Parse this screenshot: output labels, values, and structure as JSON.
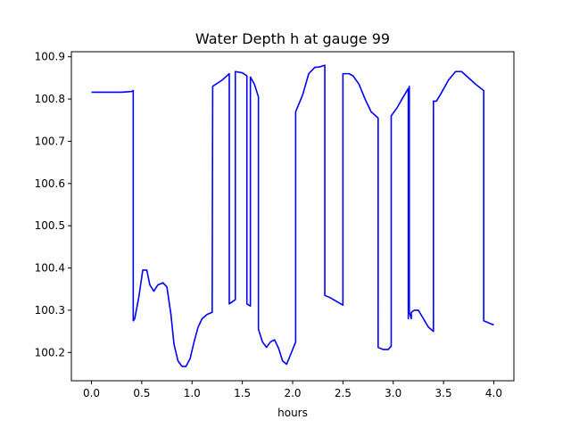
{
  "chart_data": {
    "type": "line",
    "title": "Water Depth h at gauge 99",
    "xlabel": "hours",
    "ylabel": "",
    "xlim": [
      -0.2,
      4.2
    ],
    "ylim": [
      100.133,
      100.912
    ],
    "xticks": [
      0.0,
      0.5,
      1.0,
      1.5,
      2.0,
      2.5,
      3.0,
      3.5,
      4.0
    ],
    "xtick_labels": [
      "0.0",
      "0.5",
      "1.0",
      "1.5",
      "2.0",
      "2.5",
      "3.0",
      "3.5",
      "4.0"
    ],
    "yticks": [
      100.2,
      100.3,
      100.4,
      100.5,
      100.6,
      100.7,
      100.8,
      100.9
    ],
    "ytick_labels": [
      "100.2",
      "100.3",
      "100.4",
      "100.5",
      "100.6",
      "100.7",
      "100.8",
      "100.9"
    ],
    "grid": false,
    "series": [
      {
        "color": "#0000ff",
        "x": [
          0.0,
          0.1,
          0.2,
          0.3,
          0.4,
          0.415,
          0.415,
          0.43,
          0.47,
          0.51,
          0.55,
          0.58,
          0.62,
          0.66,
          0.71,
          0.75,
          0.79,
          0.82,
          0.86,
          0.9,
          0.94,
          0.98,
          1.02,
          1.06,
          1.1,
          1.15,
          1.2,
          1.205,
          1.205,
          1.3,
          1.37,
          1.37,
          1.43,
          1.43,
          1.5,
          1.545,
          1.545,
          1.58,
          1.58,
          1.62,
          1.66,
          1.66,
          1.7,
          1.74,
          1.78,
          1.82,
          1.86,
          1.9,
          1.94,
          1.98,
          2.03,
          2.03,
          2.1,
          2.16,
          2.22,
          2.27,
          2.32,
          2.32,
          2.37,
          2.5,
          2.5,
          2.56,
          2.6,
          2.66,
          2.72,
          2.78,
          2.85,
          2.85,
          2.9,
          2.95,
          2.98,
          2.98,
          3.04,
          3.1,
          3.15,
          3.15,
          3.16,
          3.16,
          3.18,
          3.18,
          3.21,
          3.25,
          3.3,
          3.35,
          3.4,
          3.4,
          3.43,
          3.48,
          3.55,
          3.62,
          3.68,
          3.75,
          3.82,
          3.9,
          3.9,
          3.95,
          4.0
        ],
        "y": [
          100.816,
          100.816,
          100.816,
          100.816,
          100.818,
          100.82,
          100.275,
          100.28,
          100.33,
          100.395,
          100.395,
          100.36,
          100.345,
          100.36,
          100.365,
          100.355,
          100.29,
          100.22,
          100.18,
          100.167,
          100.167,
          100.185,
          100.225,
          100.26,
          100.28,
          100.29,
          100.295,
          100.83,
          100.83,
          100.845,
          100.86,
          100.315,
          100.325,
          100.865,
          100.862,
          100.855,
          100.315,
          100.31,
          100.852,
          100.835,
          100.805,
          100.255,
          100.225,
          100.212,
          100.225,
          100.23,
          100.21,
          100.18,
          100.172,
          100.195,
          100.225,
          100.77,
          100.81,
          100.86,
          100.875,
          100.876,
          100.88,
          100.335,
          100.33,
          100.312,
          100.86,
          100.86,
          100.855,
          100.835,
          100.8,
          100.77,
          100.755,
          100.212,
          100.207,
          100.207,
          100.215,
          100.76,
          100.78,
          100.805,
          100.825,
          100.28,
          100.83,
          100.295,
          100.28,
          100.295,
          100.3,
          100.3,
          100.28,
          100.26,
          100.25,
          100.795,
          100.795,
          100.815,
          100.845,
          100.865,
          100.865,
          100.85,
          100.835,
          100.82,
          100.275,
          100.27,
          100.265
        ]
      }
    ]
  }
}
